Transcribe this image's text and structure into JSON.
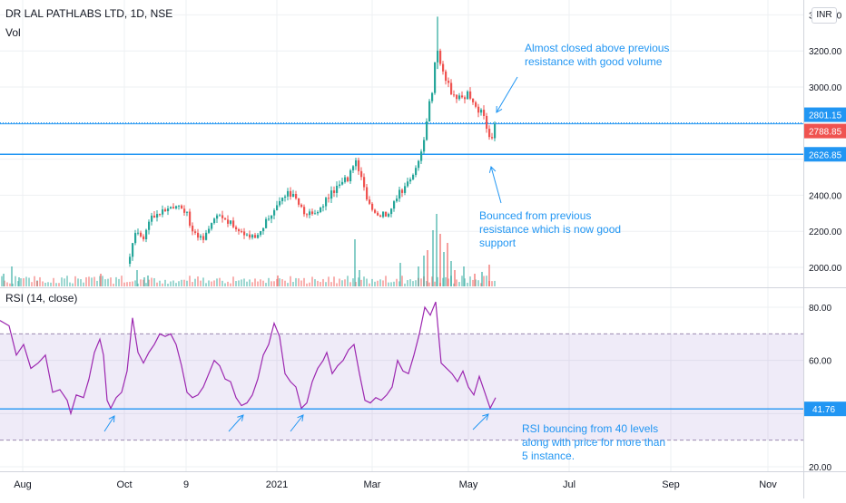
{
  "chart_data": [
    {
      "type": "candlestick",
      "title": "DR LAL PATHLABS LTD, 1D, NSE",
      "volume_label": "Vol",
      "currency": "INR",
      "x_ticks": [
        "Aug",
        "Oct",
        "9",
        "2021",
        "Mar",
        "May",
        "Jul",
        "Sep",
        "Nov"
      ],
      "y_ticks": [
        "2000.00",
        "2200.00",
        "2400.00",
        "3000.00",
        "3200.00",
        "3400.00"
      ],
      "ylim": [
        1950,
        3430
      ],
      "price_labels": [
        {
          "label": "2801.15",
          "value": 2801.15,
          "color": "#2196f3"
        },
        {
          "label": "2788.85",
          "value": 2788.85,
          "color": "#ef5350"
        },
        {
          "label": "2626.85",
          "value": 2626.85,
          "color": "#2196f3"
        }
      ],
      "horizontal_lines": [
        2801.15,
        2626.85
      ],
      "annotations": [
        {
          "lines": [
            "Almost closed above previous",
            "resistance with good volume"
          ]
        },
        {
          "lines": [
            "Bounced from previous",
            "resistance which is now good",
            "support"
          ]
        }
      ],
      "close_path": [
        [
          0,
          2010
        ],
        [
          15,
          2030
        ],
        [
          30,
          2000
        ],
        [
          50,
          2005
        ],
        [
          70,
          2012
        ],
        [
          95,
          2010
        ],
        [
          120,
          2005
        ],
        [
          140,
          2020
        ],
        [
          148,
          2210
        ],
        [
          156,
          2160
        ],
        [
          166,
          2280
        ],
        [
          180,
          2330
        ],
        [
          195,
          2350
        ],
        [
          205,
          2290
        ],
        [
          212,
          2180
        ],
        [
          222,
          2160
        ],
        [
          232,
          2250
        ],
        [
          242,
          2300
        ],
        [
          252,
          2250
        ],
        [
          262,
          2200
        ],
        [
          272,
          2180
        ],
        [
          282,
          2170
        ],
        [
          292,
          2260
        ],
        [
          302,
          2320
        ],
        [
          312,
          2410
        ],
        [
          322,
          2400
        ],
        [
          332,
          2320
        ],
        [
          342,
          2290
        ],
        [
          352,
          2330
        ],
        [
          362,
          2400
        ],
        [
          372,
          2460
        ],
        [
          382,
          2490
        ],
        [
          390,
          2600
        ],
        [
          398,
          2470
        ],
        [
          406,
          2350
        ],
        [
          416,
          2280
        ],
        [
          426,
          2300
        ],
        [
          436,
          2390
        ],
        [
          446,
          2460
        ],
        [
          456,
          2530
        ],
        [
          464,
          2640
        ],
        [
          470,
          2860
        ],
        [
          476,
          3000
        ],
        [
          480,
          3250
        ],
        [
          484,
          3120
        ],
        [
          490,
          3030
        ],
        [
          498,
          2960
        ],
        [
          506,
          2930
        ],
        [
          514,
          2960
        ],
        [
          522,
          2900
        ],
        [
          530,
          2850
        ],
        [
          536,
          2760
        ],
        [
          540,
          2700
        ],
        [
          544,
          2790
        ]
      ],
      "volume_bars": [
        {
          "x": 3,
          "h": 14
        },
        {
          "x": 12,
          "h": 22
        },
        {
          "x": 20,
          "h": 10
        },
        {
          "x": 40,
          "h": 6
        },
        {
          "x": 110,
          "h": 14
        },
        {
          "x": 150,
          "h": 18
        },
        {
          "x": 158,
          "h": 10
        },
        {
          "x": 162,
          "h": 12
        },
        {
          "x": 305,
          "h": 12
        },
        {
          "x": 390,
          "h": 52
        },
        {
          "x": 395,
          "h": 18
        },
        {
          "x": 440,
          "h": 26
        },
        {
          "x": 460,
          "h": 22
        },
        {
          "x": 466,
          "h": 34
        },
        {
          "x": 470,
          "h": 40
        },
        {
          "x": 476,
          "h": 62
        },
        {
          "x": 480,
          "h": 80
        },
        {
          "x": 484,
          "h": 58
        },
        {
          "x": 488,
          "h": 38
        },
        {
          "x": 492,
          "h": 48
        },
        {
          "x": 496,
          "h": 28
        },
        {
          "x": 500,
          "h": 18
        },
        {
          "x": 510,
          "h": 22
        },
        {
          "x": 522,
          "h": 14
        },
        {
          "x": 530,
          "h": 16
        },
        {
          "x": 538,
          "h": 24
        }
      ]
    },
    {
      "type": "line",
      "title": "RSI (14, close)",
      "y_ticks": [
        "20.00",
        "60.00",
        "80.00"
      ],
      "ylim": [
        20,
        84
      ],
      "current_value": {
        "label": "41.76",
        "value": 41.76
      },
      "band": [
        30,
        70
      ],
      "support_level": 41.76,
      "annotation": {
        "lines": [
          "RSI bouncing from 40 levels",
          "along with price for more than",
          "5 instance."
        ]
      },
      "series": [
        {
          "values": [
            [
              0,
              75
            ],
            [
              10,
              73
            ],
            [
              18,
              62
            ],
            [
              26,
              66
            ],
            [
              34,
              57
            ],
            [
              42,
              59
            ],
            [
              50,
              62
            ],
            [
              58,
              48
            ],
            [
              66,
              49
            ],
            [
              74,
              45
            ],
            [
              78,
              40
            ],
            [
              84,
              47
            ],
            [
              92,
              46
            ],
            [
              98,
              53
            ],
            [
              104,
              63
            ],
            [
              110,
              68
            ],
            [
              114,
              62
            ],
            [
              118,
              45
            ],
            [
              122,
              42
            ],
            [
              128,
              46
            ],
            [
              134,
              48
            ],
            [
              140,
              56
            ],
            [
              146,
              76
            ],
            [
              152,
              63
            ],
            [
              158,
              59
            ],
            [
              164,
              63
            ],
            [
              170,
              66
            ],
            [
              176,
              70
            ],
            [
              182,
              69
            ],
            [
              188,
              70
            ],
            [
              194,
              66
            ],
            [
              200,
              58
            ],
            [
              206,
              48
            ],
            [
              212,
              46
            ],
            [
              218,
              47
            ],
            [
              224,
              50
            ],
            [
              230,
              55
            ],
            [
              236,
              60
            ],
            [
              242,
              58
            ],
            [
              248,
              53
            ],
            [
              254,
              52
            ],
            [
              260,
              46
            ],
            [
              266,
              43
            ],
            [
              272,
              44
            ],
            [
              278,
              47
            ],
            [
              284,
              53
            ],
            [
              290,
              62
            ],
            [
              296,
              66
            ],
            [
              302,
              74
            ],
            [
              308,
              69
            ],
            [
              314,
              55
            ],
            [
              320,
              52
            ],
            [
              326,
              50
            ],
            [
              332,
              42
            ],
            [
              338,
              44
            ],
            [
              344,
              52
            ],
            [
              350,
              57
            ],
            [
              356,
              60
            ],
            [
              360,
              63
            ],
            [
              366,
              55
            ],
            [
              372,
              58
            ],
            [
              378,
              60
            ],
            [
              384,
              64
            ],
            [
              390,
              66
            ],
            [
              396,
              55
            ],
            [
              402,
              45
            ],
            [
              408,
              44
            ],
            [
              414,
              46
            ],
            [
              420,
              45
            ],
            [
              426,
              47
            ],
            [
              432,
              50
            ],
            [
              438,
              60
            ],
            [
              444,
              56
            ],
            [
              450,
              55
            ],
            [
              456,
              62
            ],
            [
              462,
              70
            ],
            [
              468,
              80
            ],
            [
              474,
              77
            ],
            [
              480,
              82
            ],
            [
              486,
              59
            ],
            [
              492,
              57
            ],
            [
              498,
              55
            ],
            [
              504,
              52
            ],
            [
              510,
              56
            ],
            [
              516,
              50
            ],
            [
              522,
              47
            ],
            [
              528,
              54
            ],
            [
              534,
              48
            ],
            [
              540,
              42
            ],
            [
              546,
              46
            ]
          ]
        }
      ]
    }
  ]
}
